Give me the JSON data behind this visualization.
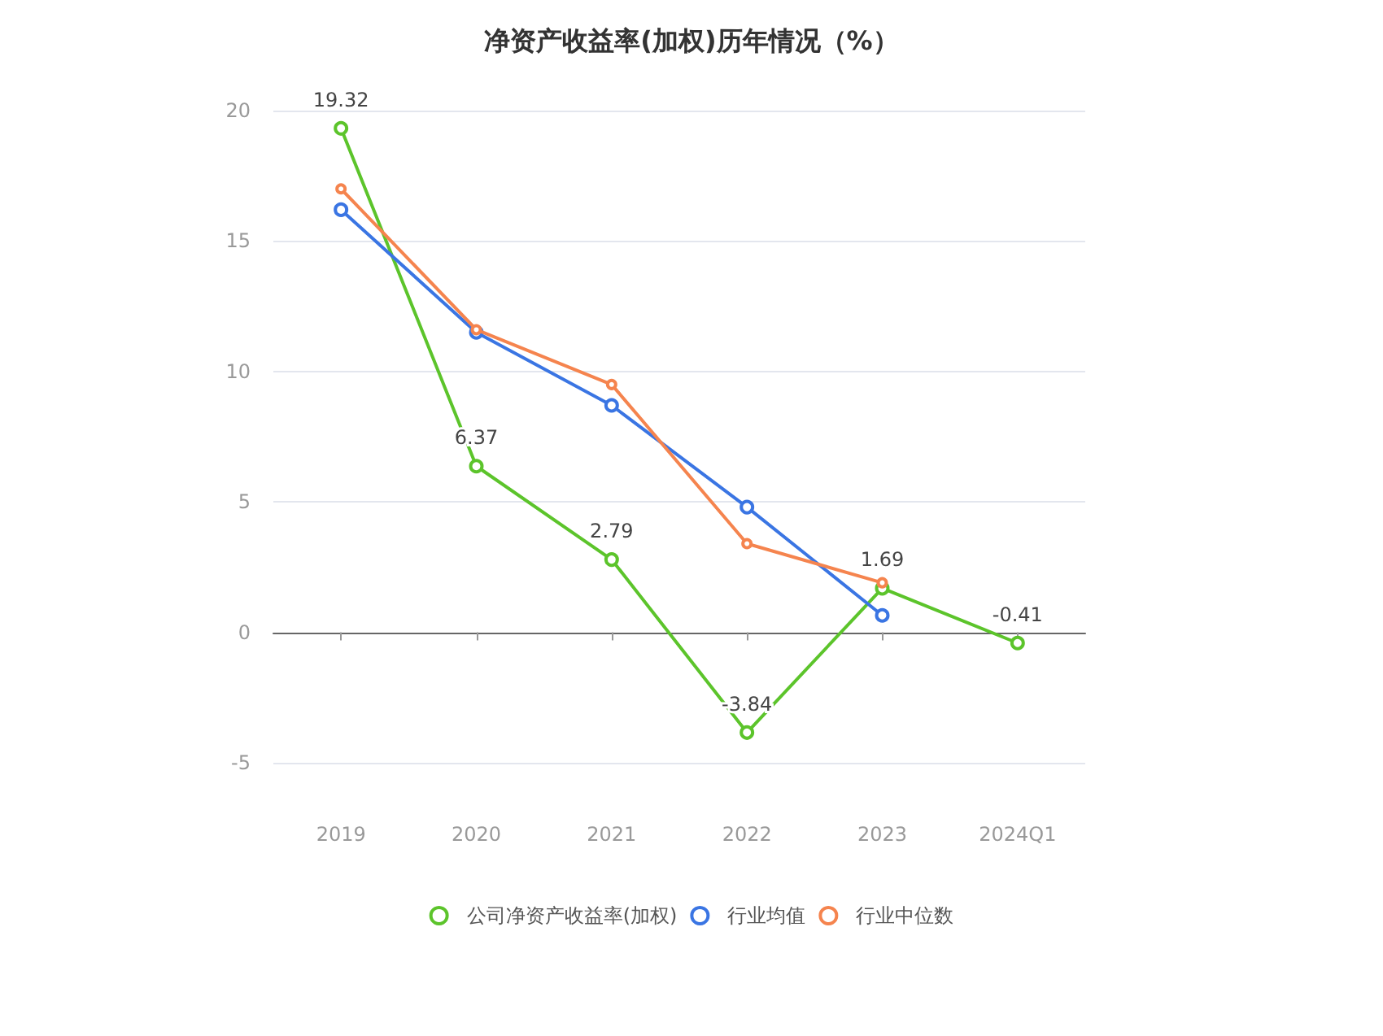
{
  "chart_data": {
    "type": "line",
    "title": "净资产收益率(加权)历年情况（%）",
    "categories": [
      "2019",
      "2020",
      "2021",
      "2022",
      "2023",
      "2024Q1"
    ],
    "series": [
      {
        "name": "公司净资产收益率(加权)",
        "color": "#5cc42b",
        "values": [
          19.32,
          6.37,
          2.79,
          -3.84,
          1.69,
          -0.41
        ],
        "value_labels": [
          "19.32",
          "6.37",
          "2.79",
          "-3.84",
          "1.69",
          "-0.41"
        ]
      },
      {
        "name": "行业均值",
        "color": "#3a75e3",
        "values": [
          16.2,
          11.5,
          8.7,
          4.8,
          0.65,
          null
        ]
      },
      {
        "name": "行业中位数",
        "color": "#f5844e",
        "values": [
          17.0,
          11.6,
          9.5,
          3.4,
          1.9,
          null
        ]
      }
    ],
    "ylim": [
      -5,
      20
    ],
    "yticks": [
      -5,
      0,
      5,
      10,
      15,
      20
    ],
    "grid": "y",
    "legend": "bottom",
    "marker": "circle",
    "line_style": "solid"
  }
}
